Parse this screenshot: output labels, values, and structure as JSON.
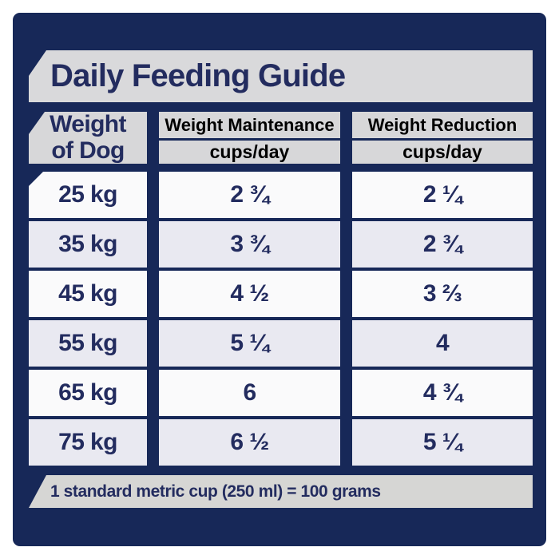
{
  "title": "Daily Feeding Guide",
  "columns": {
    "weight": {
      "label": "Weight of Dog"
    },
    "maintenance": {
      "label": "Weight Maintenance",
      "unit": "cups/day"
    },
    "reduction": {
      "label": "Weight Reduction",
      "unit": "cups/day"
    }
  },
  "rows": [
    {
      "weight": "25 kg",
      "maintenance": "2 ¾",
      "reduction": "2 ¼"
    },
    {
      "weight": "35 kg",
      "maintenance": "3 ¾",
      "reduction": "2 ¾"
    },
    {
      "weight": "45 kg",
      "maintenance": "4 ½",
      "reduction": "3 ⅔"
    },
    {
      "weight": "55 kg",
      "maintenance": "5 ¼",
      "reduction": "4"
    },
    {
      "weight": "65 kg",
      "maintenance": "6",
      "reduction": "4 ¾"
    },
    {
      "weight": "75 kg",
      "maintenance": "6 ½",
      "reduction": "5 ¼"
    }
  ],
  "footnote": "1 standard metric cup (250 ml) = 100 grams",
  "colors": {
    "panel_navy": "#172858",
    "text_navy": "#232c5f",
    "bar_gray": "#d8d8da",
    "row_white": "#fafafb",
    "row_tint": "#e9e9f1",
    "footer_gray": "#d6d6d4",
    "page_background": "#ffffff"
  }
}
